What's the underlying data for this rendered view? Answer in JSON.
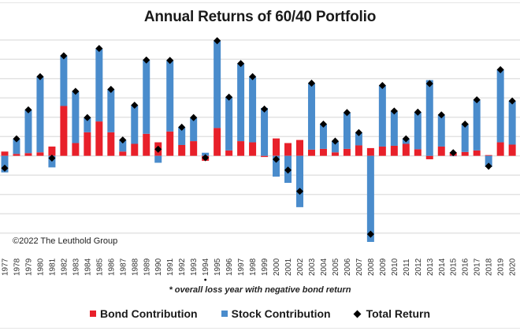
{
  "chart_data": {
    "type": "bar",
    "stacked": true,
    "title": "Annual Returns of 60/40 Portfolio",
    "xlabel": "",
    "ylabel": "",
    "ylim": [
      -22.5,
      30
    ],
    "y_gridline_step": 5,
    "grid": true,
    "legend_position": "bottom",
    "categories": [
      "1977",
      "1978",
      "1979",
      "1980",
      "1981",
      "1982",
      "1983",
      "1984",
      "1985",
      "1986",
      "1987",
      "1988",
      "1989",
      "1990",
      "1991",
      "1992",
      "1993",
      "1994",
      "1995",
      "1996",
      "1997",
      "1998",
      "1999",
      "2000",
      "2001",
      "2002",
      "2003",
      "2004",
      "2005",
      "2006",
      "2007",
      "2008",
      "2009",
      "2010",
      "2011",
      "2012",
      "2013",
      "2014",
      "2015",
      "2016",
      "2017",
      "2018",
      "2019",
      "2020"
    ],
    "series": [
      {
        "name": "Bond Contribution",
        "type": "bar",
        "color": "#e8202a",
        "values": [
          1.1,
          0.5,
          0.7,
          0.9,
          2.4,
          12.9,
          3.3,
          6.1,
          8.9,
          6.1,
          1.1,
          3.1,
          5.7,
          3.5,
          6.3,
          2.8,
          3.8,
          -1.3,
          7.2,
          1.4,
          3.8,
          3.5,
          -0.3,
          4.5,
          3.3,
          4.1,
          1.6,
          1.8,
          0.9,
          1.8,
          2.7,
          2.0,
          2.4,
          2.6,
          3.1,
          1.7,
          -0.9,
          2.4,
          0.9,
          1.0,
          1.4,
          0.2,
          3.5,
          2.9
        ]
      },
      {
        "name": "Stock Contribution",
        "type": "bar",
        "color": "#4a8ccc",
        "values": [
          -4.3,
          3.9,
          11.2,
          19.6,
          -3.0,
          13.0,
          13.4,
          3.8,
          18.9,
          11.1,
          3.0,
          10.0,
          19.1,
          -1.8,
          18.4,
          4.6,
          6.1,
          0.8,
          22.6,
          13.8,
          20.1,
          17.0,
          12.4,
          -5.4,
          -7.0,
          -13.3,
          17.2,
          6.4,
          2.9,
          9.4,
          3.3,
          -22.3,
          15.8,
          9.0,
          1.3,
          9.6,
          19.6,
          8.2,
          -0.1,
          7.2,
          13.1,
          -2.9,
          18.8,
          11.3
        ]
      },
      {
        "name": "Total Return",
        "type": "scatter",
        "marker": "diamond",
        "color": "#000000",
        "values": [
          -3.2,
          4.4,
          11.9,
          20.5,
          -0.6,
          25.9,
          16.7,
          9.9,
          27.8,
          17.2,
          4.1,
          13.1,
          24.8,
          1.7,
          24.7,
          7.4,
          9.9,
          -0.5,
          29.8,
          15.2,
          23.9,
          20.5,
          12.1,
          -0.9,
          -3.7,
          -9.2,
          18.8,
          8.2,
          3.8,
          11.2,
          6.0,
          -20.3,
          18.2,
          11.6,
          4.4,
          11.3,
          18.7,
          10.6,
          0.8,
          8.2,
          14.5,
          -2.7,
          22.3,
          14.2
        ]
      }
    ],
    "annotations": [
      {
        "category": "1994",
        "text": "*",
        "note": "overall loss year with negative bond return"
      }
    ]
  },
  "copyright": "©2022 The Leuthold Group",
  "footnote": "* overall loss year with negative bond return",
  "legend": {
    "bond": "Bond Contribution",
    "stock": "Stock Contribution",
    "total": "Total Return"
  }
}
